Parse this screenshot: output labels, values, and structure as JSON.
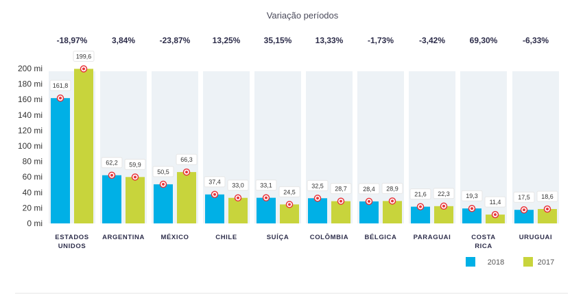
{
  "chart_data": {
    "type": "bar",
    "title": "Variação períodos",
    "categories": [
      [
        "ESTADOS",
        "UNIDOS"
      ],
      [
        "ARGENTINA"
      ],
      [
        "MÉXICO"
      ],
      [
        "CHILE"
      ],
      [
        "SUÍÇA"
      ],
      [
        "COLÔMBIA"
      ],
      [
        "BÉLGICA"
      ],
      [
        "PARAGUAI"
      ],
      [
        "COSTA",
        "RICA"
      ],
      [
        "URUGUAI"
      ]
    ],
    "variation": [
      "-18,97%",
      "3,84%",
      "-23,87%",
      "13,25%",
      "35,15%",
      "13,33%",
      "-1,73%",
      "-3,42%",
      "69,30%",
      "-6,33%"
    ],
    "series": [
      {
        "name": "2018",
        "color": "#00b0e6",
        "values": [
          161.8,
          62.2,
          50.5,
          37.4,
          33.1,
          32.5,
          28.4,
          21.6,
          19.3,
          17.5
        ],
        "labels": [
          "161,8",
          "62,2",
          "50,5",
          "37,4",
          "33,1",
          "32,5",
          "28,4",
          "21,6",
          "19,3",
          "17,5"
        ]
      },
      {
        "name": "2017",
        "color": "#c8d43c",
        "values": [
          199.6,
          59.9,
          66.3,
          33.0,
          24.5,
          28.7,
          28.9,
          22.3,
          11.4,
          18.6
        ],
        "labels": [
          "199,6",
          "59,9",
          "66,3",
          "33,0",
          "24,5",
          "28,7",
          "28,9",
          "22,3",
          "11,4",
          "18,6"
        ]
      }
    ],
    "yticks": [
      0,
      20,
      40,
      60,
      80,
      100,
      120,
      140,
      160,
      180,
      200
    ],
    "ytick_labels": [
      "0 mi",
      "20 mi",
      "40 mi",
      "60 mi",
      "80 mi",
      "100 mi",
      "120 mi",
      "140 mi",
      "160 mi",
      "180 mi",
      "200 mi"
    ],
    "ylim": [
      0,
      200
    ],
    "grid": false,
    "legend_position": "bottom-right"
  }
}
